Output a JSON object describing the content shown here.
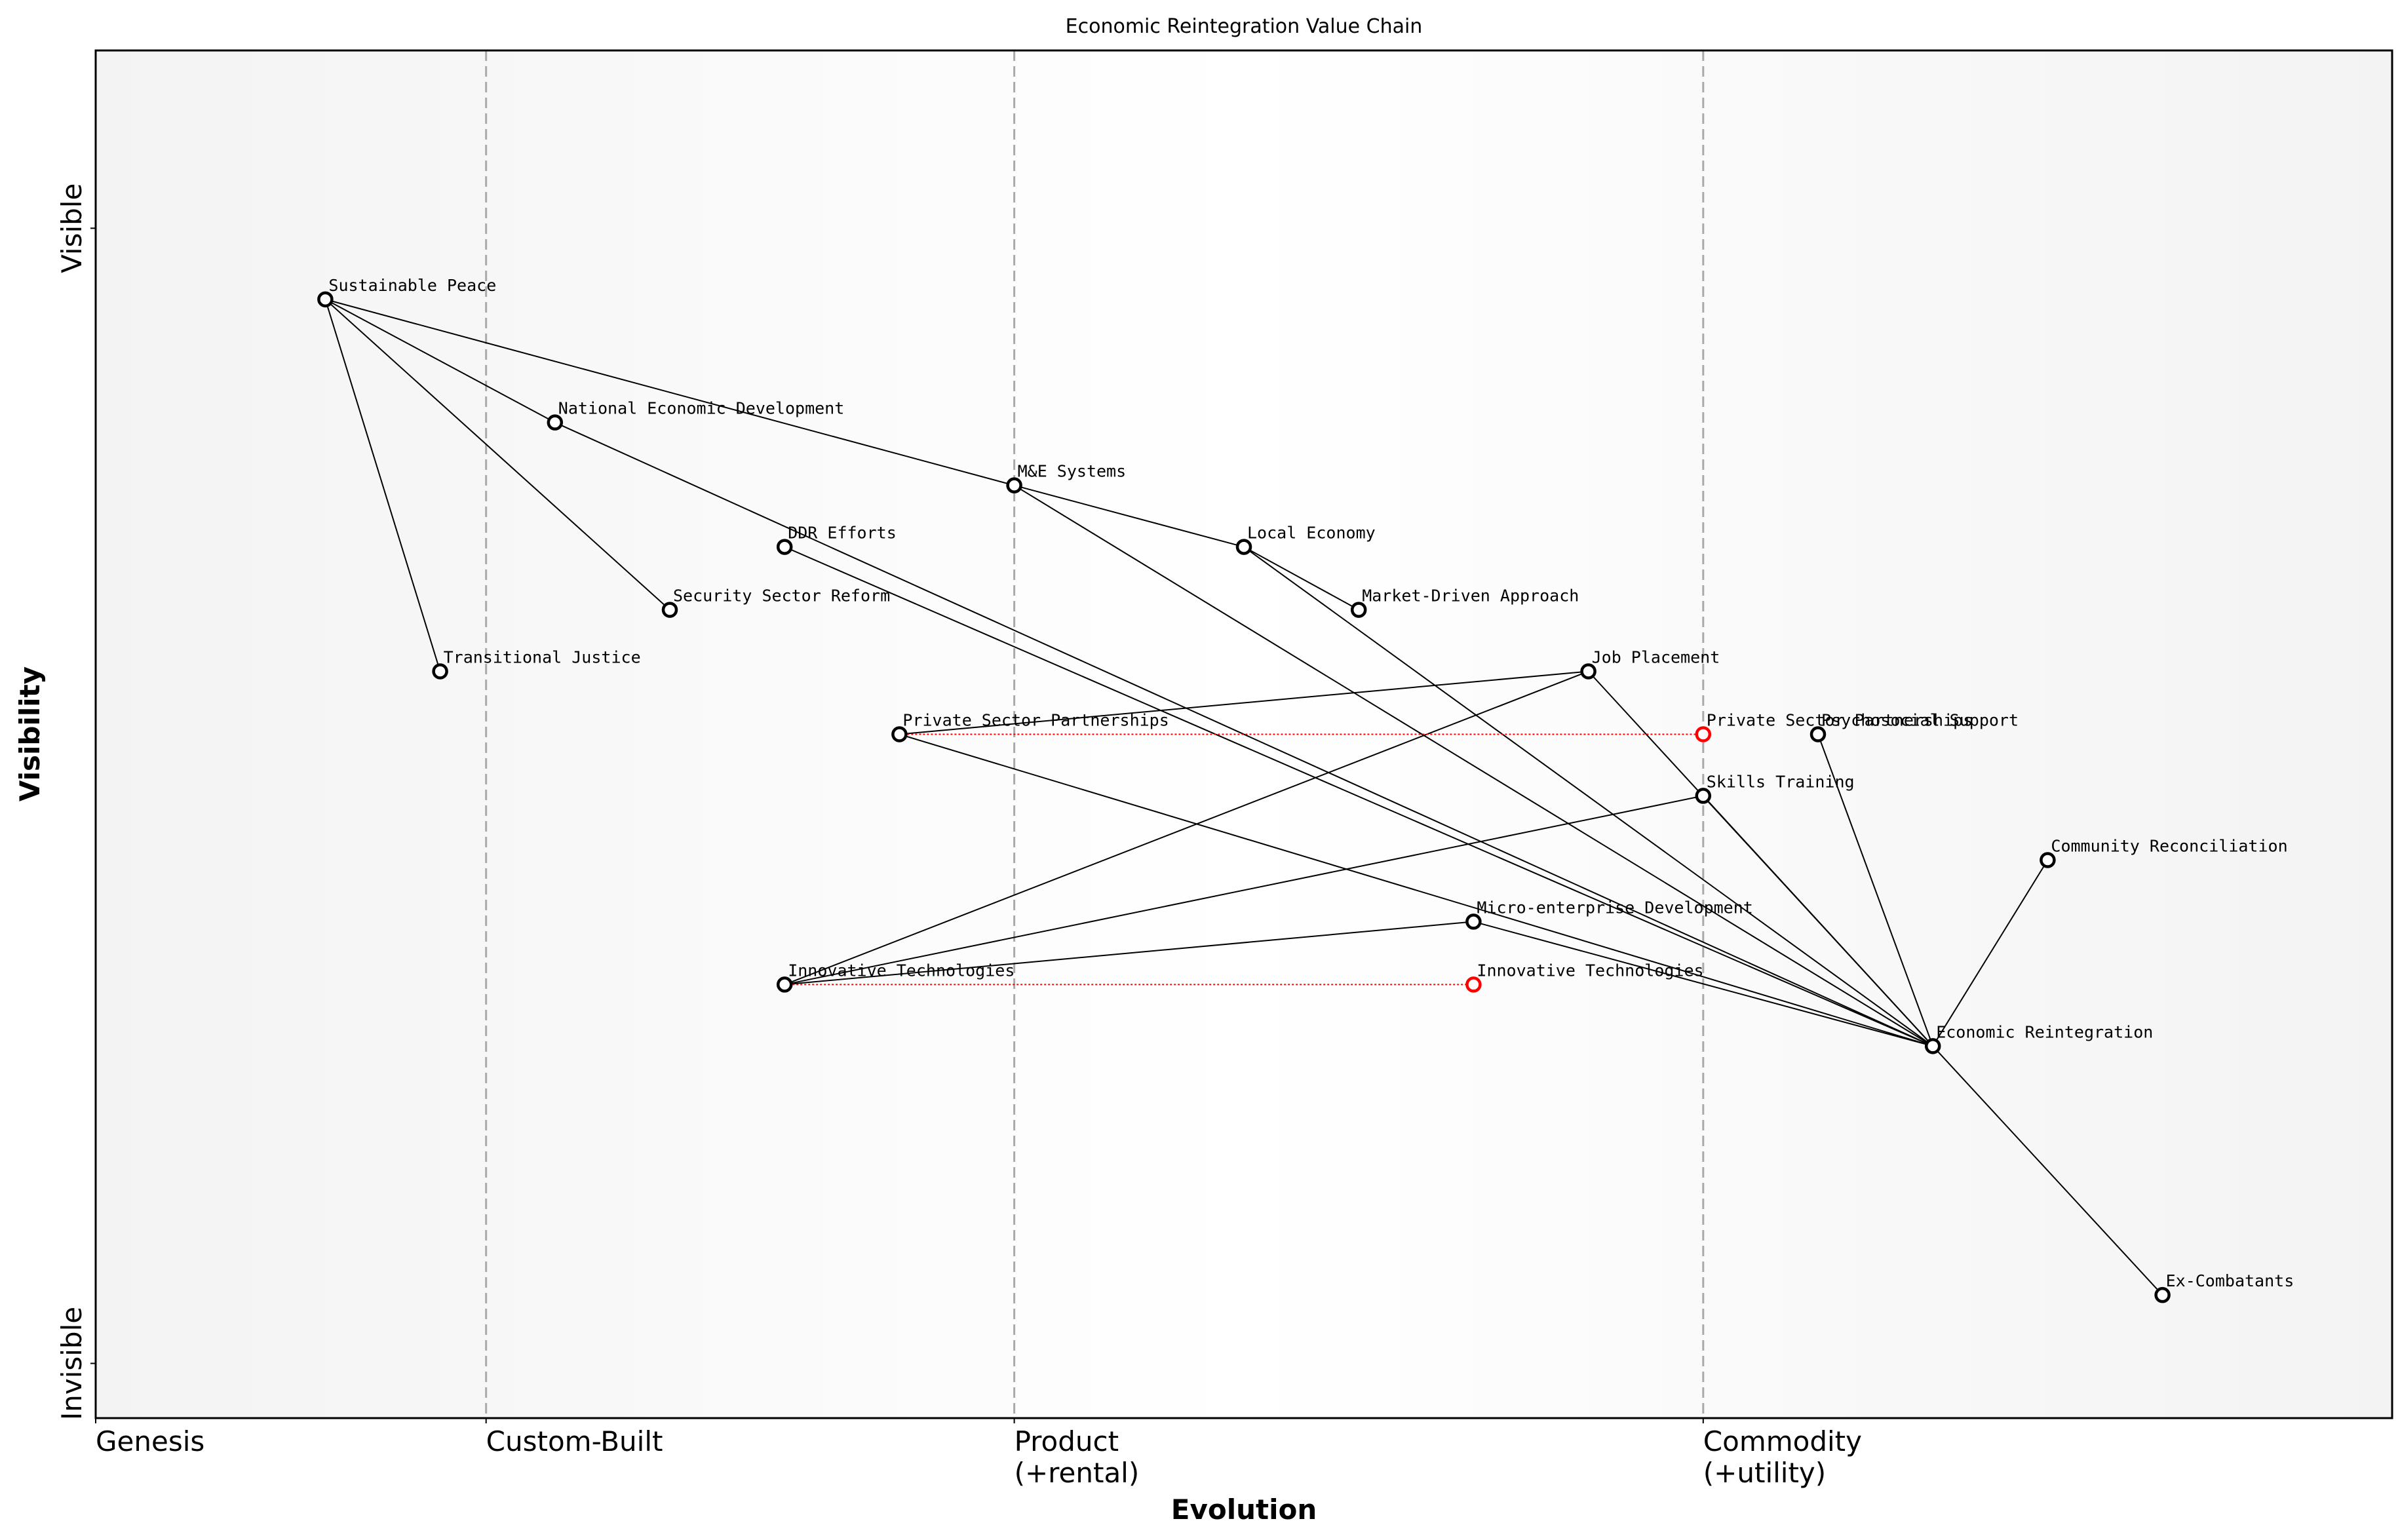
{
  "chart_data": {
    "type": "wardley",
    "title": "Economic Reintegration Value Chain",
    "x_label": "Evolution",
    "y_label": "Visibility",
    "xlim": [
      0,
      1
    ],
    "ylim": [
      0,
      1
    ],
    "xticks": [
      {
        "value": 0,
        "label": [
          "Genesis"
        ]
      },
      {
        "value": 0.17,
        "label": [
          "Custom-Built"
        ]
      },
      {
        "value": 0.4,
        "label": [
          "Product",
          "(+rental)"
        ]
      },
      {
        "value": 0.7,
        "label": [
          "Commodity",
          "(+utility)"
        ]
      }
    ],
    "yticks": [
      {
        "value": 0.04,
        "label": "Invisible"
      },
      {
        "value": 0.87,
        "label": "Visible"
      }
    ],
    "node_color": "#000000",
    "evolve_color": "#ff0000",
    "nodes": [
      {
        "name": "Sustainable Peace",
        "x": 0.1,
        "y": 0.818
      },
      {
        "name": "National Economic Development",
        "x": 0.2,
        "y": 0.728
      },
      {
        "name": "M&E Systems",
        "x": 0.4,
        "y": 0.682
      },
      {
        "name": "DDR Efforts",
        "x": 0.3,
        "y": 0.637
      },
      {
        "name": "Local Economy",
        "x": 0.5,
        "y": 0.637
      },
      {
        "name": "Security Sector Reform",
        "x": 0.25,
        "y": 0.591
      },
      {
        "name": "Market-Driven Approach",
        "x": 0.55,
        "y": 0.591
      },
      {
        "name": "Transitional Justice",
        "x": 0.15,
        "y": 0.546
      },
      {
        "name": "Job Placement",
        "x": 0.65,
        "y": 0.546
      },
      {
        "name": "Private Sector Partnerships",
        "x": 0.35,
        "y": 0.5
      },
      {
        "name": "Private Sector Partnerships",
        "x": 0.7,
        "y": 0.5,
        "evolved": true
      },
      {
        "name": "Psychosocial Support",
        "x": 0.75,
        "y": 0.5
      },
      {
        "name": "Skills Training",
        "x": 0.7,
        "y": 0.455
      },
      {
        "name": "Community Reconciliation",
        "x": 0.85,
        "y": 0.408
      },
      {
        "name": "Micro-enterprise Development",
        "x": 0.6,
        "y": 0.363
      },
      {
        "name": "Innovative Technologies",
        "x": 0.3,
        "y": 0.317
      },
      {
        "name": "Innovative Technologies",
        "x": 0.6,
        "y": 0.317,
        "evolved": true
      },
      {
        "name": "Economic Reintegration",
        "x": 0.8,
        "y": 0.272
      },
      {
        "name": "Ex-Combatants",
        "x": 0.9,
        "y": 0.09
      }
    ],
    "links": [
      [
        0,
        1
      ],
      [
        0,
        2
      ],
      [
        0,
        5
      ],
      [
        0,
        7
      ],
      [
        1,
        17
      ],
      [
        2,
        4
      ],
      [
        2,
        17
      ],
      [
        3,
        17
      ],
      [
        4,
        6
      ],
      [
        4,
        17
      ],
      [
        8,
        9
      ],
      [
        8,
        15
      ],
      [
        8,
        17
      ],
      [
        12,
        17
      ],
      [
        9,
        17
      ],
      [
        14,
        17
      ],
      [
        15,
        14
      ],
      [
        15,
        12
      ],
      [
        11,
        17
      ],
      [
        13,
        17
      ],
      [
        17,
        18
      ]
    ],
    "evolutions": [
      [
        9,
        10
      ],
      [
        15,
        16
      ]
    ]
  }
}
